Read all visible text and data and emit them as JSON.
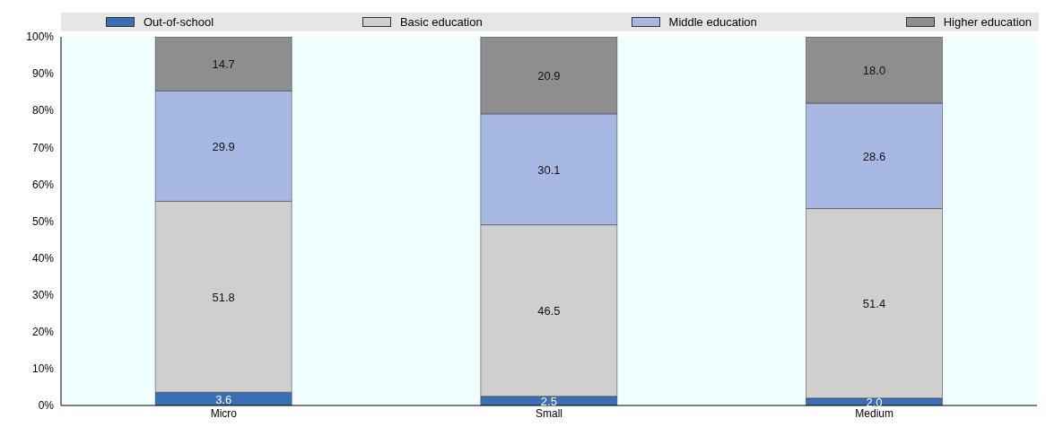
{
  "chart_data": {
    "type": "bar",
    "stacked": true,
    "categories": [
      "Micro",
      "Small",
      "Medium"
    ],
    "ylim": [
      0,
      100
    ],
    "yticks": [
      {
        "value": 0,
        "label": "0%"
      },
      {
        "value": 10,
        "label": "10%"
      },
      {
        "value": 20,
        "label": "20%"
      },
      {
        "value": 30,
        "label": "30%"
      },
      {
        "value": 40,
        "label": "40%"
      },
      {
        "value": 50,
        "label": "50%"
      },
      {
        "value": 60,
        "label": "60%"
      },
      {
        "value": 70,
        "label": "70%"
      },
      {
        "value": 80,
        "label": "80%"
      },
      {
        "value": 90,
        "label": "90%"
      },
      {
        "value": 100,
        "label": "100%"
      }
    ],
    "legend": "top",
    "series": [
      {
        "name": "Out-of-school",
        "color": "#3a6fb5",
        "values": [
          3.6,
          2.5,
          2.0
        ],
        "value_labels": [
          "3.6",
          "2.5",
          "2.0"
        ]
      },
      {
        "name": "Basic education",
        "color": "#cfcfcf",
        "values": [
          51.8,
          46.5,
          51.4
        ],
        "value_labels": [
          "51.8",
          "46.5",
          "51.4"
        ]
      },
      {
        "name": "Middle education",
        "color": "#a7b8e3",
        "values": [
          29.9,
          30.1,
          28.6
        ],
        "value_labels": [
          "29.9",
          "30.1",
          "28.6"
        ]
      },
      {
        "name": "Higher education",
        "color": "#8e8e8e",
        "values": [
          14.7,
          20.9,
          18.0
        ],
        "value_labels": [
          "14.7",
          "20.9",
          "18.0"
        ]
      }
    ]
  }
}
